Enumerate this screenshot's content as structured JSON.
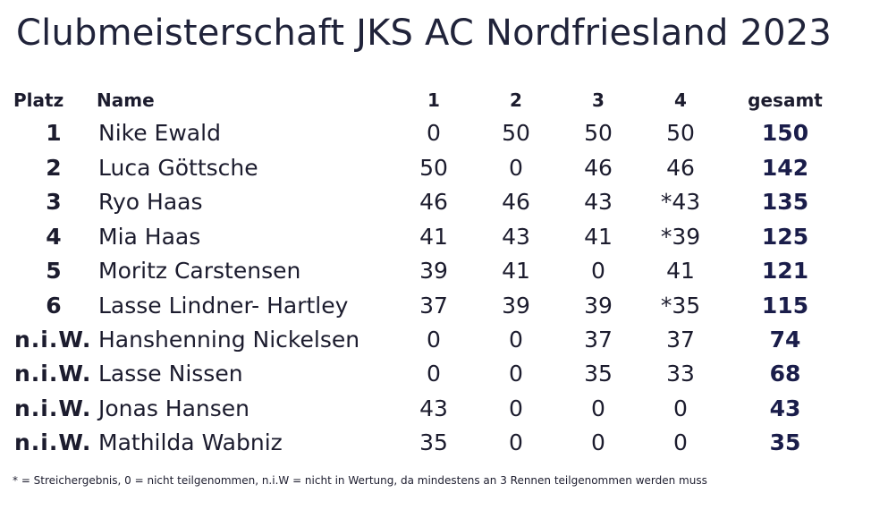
{
  "title": "Clubmeisterschaft JKS AC Nordfriesland 2023",
  "headers": {
    "rank": "Platz",
    "name": "Name",
    "race1": "1",
    "race2": "2",
    "race3": "3",
    "race4": "4",
    "total": "gesamt"
  },
  "rows": [
    {
      "rank": "1",
      "name": "Nike Ewald",
      "r1": "0",
      "r2": "50",
      "r3": "50",
      "r4": "50",
      "total": "150"
    },
    {
      "rank": "2",
      "name": "Luca Göttsche",
      "r1": "50",
      "r2": "0",
      "r3": "46",
      "r4": "46",
      "total": "142"
    },
    {
      "rank": "3",
      "name": "Ryo Haas",
      "r1": "46",
      "r2": "46",
      "r3": "43",
      "r4": "*43",
      "total": "135"
    },
    {
      "rank": "4",
      "name": "Mia Haas",
      "r1": "41",
      "r2": "43",
      "r3": "41",
      "r4": "*39",
      "total": "125"
    },
    {
      "rank": "5",
      "name": "Moritz Carstensen",
      "r1": "39",
      "r2": "41",
      "r3": "0",
      "r4": "41",
      "total": "121"
    },
    {
      "rank": "6",
      "name": "Lasse Lindner- Hartley",
      "r1": "37",
      "r2": "39",
      "r3": "39",
      "r4": "*35",
      "total": "115"
    },
    {
      "rank": "n.i.W.",
      "name": "Hanshenning Nickelsen",
      "r1": "0",
      "r2": "0",
      "r3": "37",
      "r4": "37",
      "total": "74"
    },
    {
      "rank": "n.i.W.",
      "name": "Lasse Nissen",
      "r1": "0",
      "r2": "0",
      "r3": "35",
      "r4": "33",
      "total": "68"
    },
    {
      "rank": "n.i.W.",
      "name": "Jonas Hansen",
      "r1": "43",
      "r2": "0",
      "r3": "0",
      "r4": "0",
      "total": "43"
    },
    {
      "rank": "n.i.W.",
      "name": "Mathilda Wabniz",
      "r1": "35",
      "r2": "0",
      "r3": "0",
      "r4": "0",
      "total": "35"
    }
  ],
  "footnote": "* = Streichergebnis, 0 = nicht teilgenommen, n.i.W = nicht in Wertung, da mindestens an 3 Rennen teilgenommen werden muss"
}
